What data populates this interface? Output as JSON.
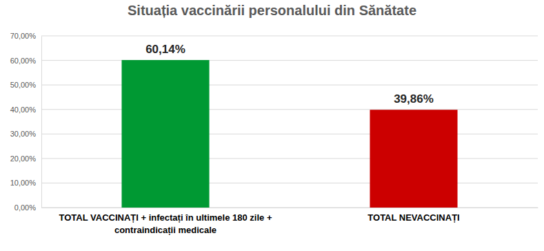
{
  "chart_data": {
    "type": "bar",
    "title": "Situația vaccinării personalului din Sănătate",
    "categories": [
      "TOTAL VACCINAȚI + infectați în ultimele 180 zile + contraindicații medicale",
      "TOTAL NEVACCINAȚI"
    ],
    "values": [
      60.14,
      39.86
    ],
    "value_labels": [
      "60,14%",
      "39,86%"
    ],
    "colors": [
      "#009933",
      "#cc0000"
    ],
    "ylim": [
      0,
      70
    ],
    "yticks": [
      {
        "value": 0,
        "label": "0,00%"
      },
      {
        "value": 10,
        "label": "10,00%"
      },
      {
        "value": 20,
        "label": "20,00%"
      },
      {
        "value": 30,
        "label": "30,00%"
      },
      {
        "value": 40,
        "label": "40,00%"
      },
      {
        "value": 50,
        "label": "50,00%"
      },
      {
        "value": 60,
        "label": "60,00%"
      },
      {
        "value": 70,
        "label": "70,00%"
      }
    ],
    "grid": true,
    "data_labels": true
  }
}
